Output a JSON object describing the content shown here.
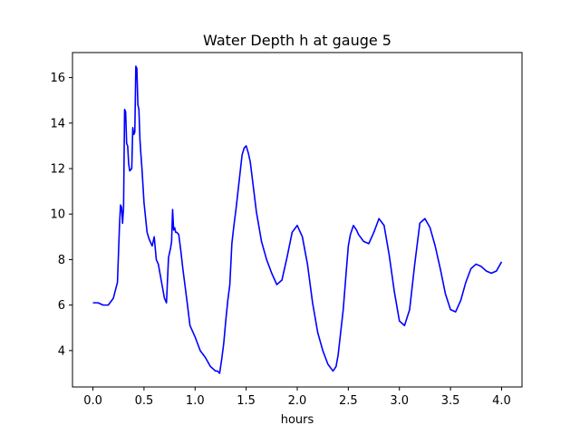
{
  "chart_data": {
    "type": "line",
    "title": "Water Depth h at gauge 5",
    "xlabel": "hours",
    "ylabel": "",
    "xlim": [
      -0.2,
      4.2
    ],
    "ylim": [
      2.4,
      17.1
    ],
    "x_ticks": [
      0.0,
      0.5,
      1.0,
      1.5,
      2.0,
      2.5,
      3.0,
      3.5,
      4.0
    ],
    "x_tick_labels": [
      "0.0",
      "0.5",
      "1.0",
      "1.5",
      "2.0",
      "2.5",
      "3.0",
      "3.5",
      "4.0"
    ],
    "y_ticks": [
      4,
      6,
      8,
      10,
      12,
      14,
      16
    ],
    "y_tick_labels": [
      "4",
      "6",
      "8",
      "10",
      "12",
      "14",
      "16"
    ],
    "grid": false,
    "series": [
      {
        "color": "#0000ff",
        "x": [
          0.0,
          0.05,
          0.1,
          0.15,
          0.2,
          0.24,
          0.26,
          0.27,
          0.28,
          0.29,
          0.3,
          0.31,
          0.32,
          0.33,
          0.34,
          0.35,
          0.36,
          0.38,
          0.39,
          0.4,
          0.41,
          0.42,
          0.43,
          0.44,
          0.45,
          0.46,
          0.47,
          0.48,
          0.5,
          0.53,
          0.55,
          0.58,
          0.6,
          0.62,
          0.64,
          0.66,
          0.68,
          0.7,
          0.72,
          0.74,
          0.75,
          0.76,
          0.77,
          0.78,
          0.79,
          0.8,
          0.81,
          0.82,
          0.84,
          0.86,
          0.88,
          0.9,
          0.92,
          0.95,
          1.0,
          1.05,
          1.1,
          1.15,
          1.2,
          1.22,
          1.24,
          1.26,
          1.28,
          1.3,
          1.32,
          1.34,
          1.36,
          1.38,
          1.4,
          1.42,
          1.44,
          1.46,
          1.48,
          1.5,
          1.52,
          1.54,
          1.57,
          1.6,
          1.65,
          1.7,
          1.75,
          1.8,
          1.85,
          1.9,
          1.95,
          2.0,
          2.05,
          2.1,
          2.15,
          2.2,
          2.25,
          2.3,
          2.35,
          2.38,
          2.4,
          2.42,
          2.45,
          2.48,
          2.5,
          2.52,
          2.55,
          2.58,
          2.6,
          2.65,
          2.7,
          2.75,
          2.8,
          2.85,
          2.9,
          2.95,
          3.0,
          3.05,
          3.1,
          3.15,
          3.2,
          3.25,
          3.3,
          3.35,
          3.4,
          3.45,
          3.5,
          3.55,
          3.6,
          3.65,
          3.7,
          3.75,
          3.8,
          3.85,
          3.9,
          3.95,
          4.0
        ],
        "y": [
          6.1,
          6.1,
          6.0,
          6.0,
          6.3,
          7.0,
          9.5,
          10.4,
          10.3,
          9.6,
          10.3,
          14.6,
          14.5,
          13.1,
          13.0,
          12.2,
          11.9,
          12.0,
          13.8,
          13.5,
          13.6,
          16.5,
          16.4,
          14.8,
          14.6,
          13.3,
          12.6,
          12.0,
          10.5,
          9.2,
          8.9,
          8.6,
          9.0,
          8.0,
          7.8,
          7.3,
          6.8,
          6.3,
          6.1,
          8.1,
          8.3,
          8.5,
          8.8,
          10.2,
          9.3,
          9.4,
          9.2,
          9.2,
          9.1,
          8.4,
          7.6,
          6.9,
          6.2,
          5.1,
          4.6,
          4.0,
          3.7,
          3.3,
          3.1,
          3.1,
          3.0,
          3.6,
          4.3,
          5.3,
          6.2,
          6.9,
          8.7,
          9.5,
          10.2,
          11.0,
          11.8,
          12.6,
          12.9,
          13.0,
          12.7,
          12.3,
          11.2,
          10.1,
          8.8,
          8.0,
          7.4,
          6.9,
          7.1,
          8.1,
          9.2,
          9.5,
          9.0,
          7.8,
          6.1,
          4.8,
          4.0,
          3.4,
          3.1,
          3.3,
          3.8,
          4.6,
          5.8,
          7.5,
          8.6,
          9.1,
          9.5,
          9.3,
          9.1,
          8.8,
          8.7,
          9.2,
          9.8,
          9.5,
          8.2,
          6.6,
          5.3,
          5.1,
          5.8,
          7.8,
          9.6,
          9.8,
          9.4,
          8.6,
          7.6,
          6.5,
          5.8,
          5.7,
          6.2,
          7.0,
          7.6,
          7.8,
          7.7,
          7.5,
          7.4,
          7.5,
          7.9
        ]
      }
    ]
  }
}
